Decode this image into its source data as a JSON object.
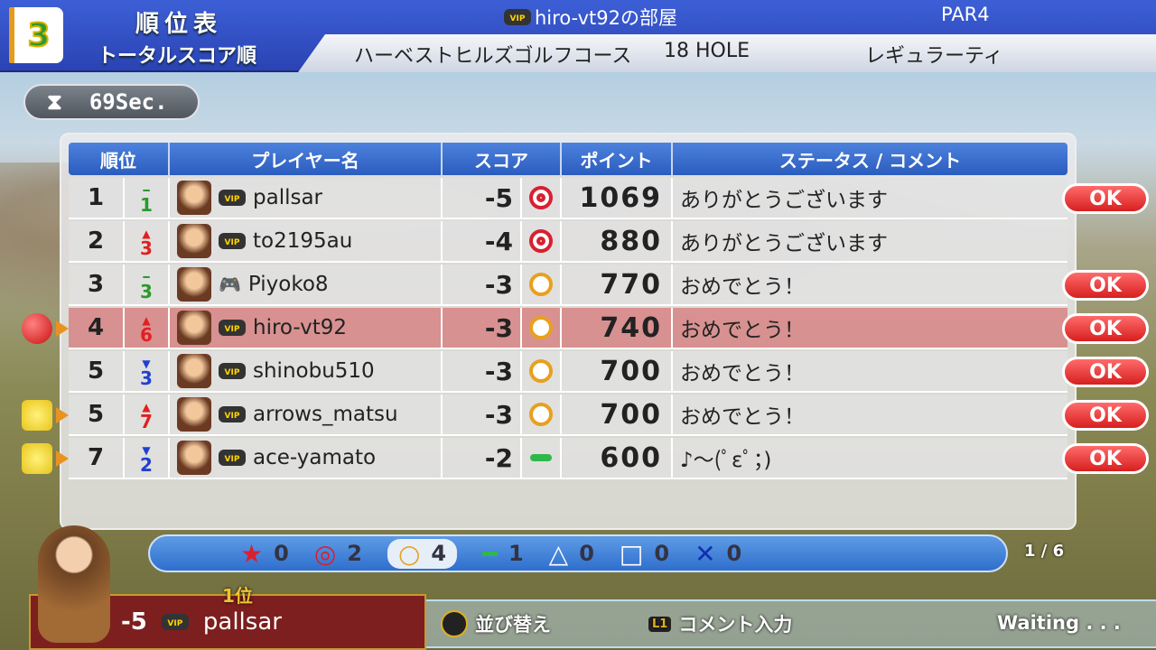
{
  "header": {
    "hole_number": "3",
    "title": "順位表",
    "subtitle": "トータルスコア順",
    "room": "hiro-vt92の部屋",
    "par": "PAR4",
    "course": "ハーベストヒルズゴルフコース",
    "holes": "18 HOLE",
    "tee": "レギュラーティ"
  },
  "timer": {
    "icon": "hourglass-icon",
    "text": "69Sec."
  },
  "table": {
    "columns": [
      "順位",
      "プレイヤー名",
      "スコア",
      "ポイント",
      "ステータス / コメント"
    ],
    "rows": [
      {
        "rank": "1",
        "change_dir": "same",
        "change": "1",
        "name": "pallsar",
        "vip": true,
        "score": "-5",
        "mark": "double-circle",
        "points": "1069",
        "comment": "ありがとうございます",
        "ok": "OK"
      },
      {
        "rank": "2",
        "change_dir": "up",
        "change": "3",
        "name": "to2195au",
        "vip": true,
        "score": "-4",
        "mark": "double-circle",
        "points": "880",
        "comment": "ありがとうございます",
        "ok": ""
      },
      {
        "rank": "3",
        "change_dir": "same",
        "change": "3",
        "name": "Piyoko8",
        "vip": false,
        "score": "-3",
        "mark": "circle",
        "points": "770",
        "comment": "おめでとう！",
        "ok": "OK"
      },
      {
        "rank": "4",
        "change_dir": "up",
        "change": "6",
        "name": "hiro-vt92",
        "vip": true,
        "score": "-3",
        "mark": "circle",
        "points": "740",
        "comment": "おめでとう！",
        "ok": "OK",
        "self": true
      },
      {
        "rank": "5",
        "change_dir": "down",
        "change": "3",
        "name": "shinobu510",
        "vip": true,
        "score": "-3",
        "mark": "circle",
        "points": "700",
        "comment": "おめでとう！",
        "ok": "OK"
      },
      {
        "rank": "5",
        "change_dir": "up",
        "change": "7",
        "name": "arrows_matsu",
        "vip": true,
        "score": "-3",
        "mark": "circle",
        "points": "700",
        "comment": "おめでとう！",
        "ok": "OK"
      },
      {
        "rank": "7",
        "change_dir": "down",
        "change": "2",
        "name": "ace-yamato",
        "vip": true,
        "score": "-2",
        "mark": "dash",
        "points": "600",
        "comment": "♪～(ﾟεﾟ；)",
        "ok": "OK"
      }
    ]
  },
  "tally": [
    {
      "icon": "star-icon",
      "count": "0"
    },
    {
      "icon": "double-circle-icon",
      "count": "2"
    },
    {
      "icon": "circle-icon",
      "count": "4",
      "selected": true
    },
    {
      "icon": "dash-icon",
      "count": "1"
    },
    {
      "icon": "triangle-icon",
      "count": "0"
    },
    {
      "icon": "square-icon",
      "count": "0"
    },
    {
      "icon": "cross-icon",
      "count": "0"
    }
  ],
  "page": "1 / 6",
  "footer": {
    "rank": "1位",
    "score": "-5",
    "name": "pallsar",
    "sort_label": "並び替え",
    "comment_label": "コメント入力",
    "l1": "L1",
    "status": "Waiting . . ."
  },
  "colors": {
    "up": "#e02020",
    "down": "#2040d0",
    "same": "#2a9a2a",
    "self_row": "#d67878",
    "ok": "#d71f1f"
  }
}
